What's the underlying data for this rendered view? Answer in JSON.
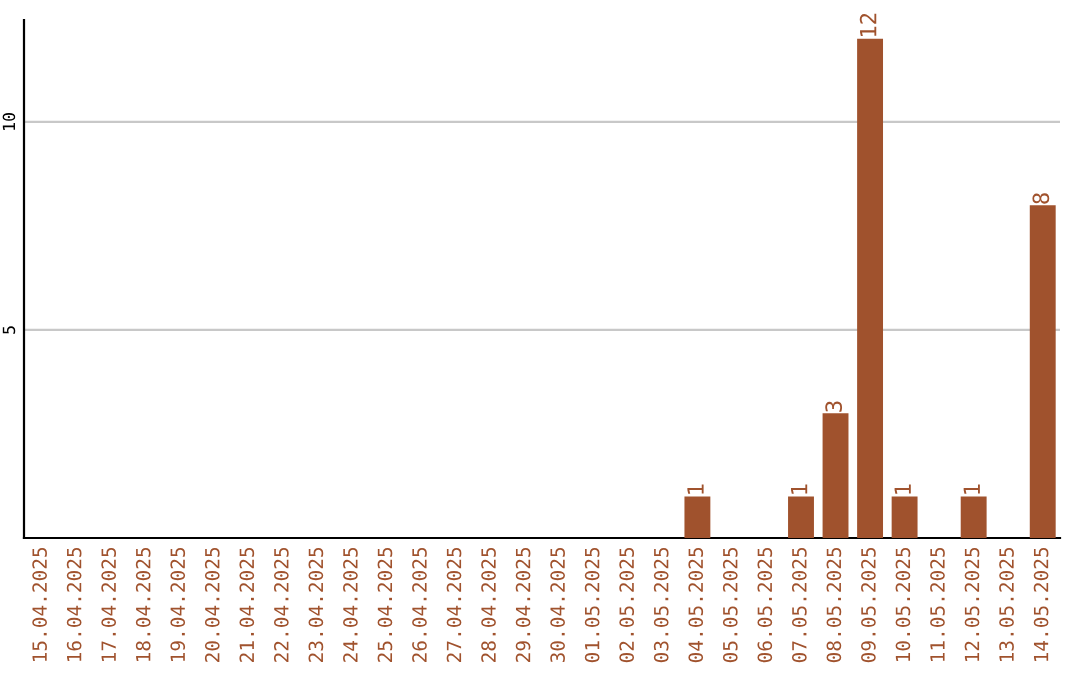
{
  "chart_data": {
    "type": "bar",
    "categories": [
      "15.04.2025",
      "16.04.2025",
      "17.04.2025",
      "18.04.2025",
      "19.04.2025",
      "20.04.2025",
      "21.04.2025",
      "22.04.2025",
      "23.04.2025",
      "24.04.2025",
      "25.04.2025",
      "26.04.2025",
      "27.04.2025",
      "28.04.2025",
      "29.04.2025",
      "30.04.2025",
      "01.05.2025",
      "02.05.2025",
      "03.05.2025",
      "04.05.2025",
      "05.05.2025",
      "06.05.2025",
      "07.05.2025",
      "08.05.2025",
      "09.05.2025",
      "10.05.2025",
      "11.05.2025",
      "12.05.2025",
      "13.05.2025",
      "14.05.2025"
    ],
    "values": [
      0,
      0,
      0,
      0,
      0,
      0,
      0,
      0,
      0,
      0,
      0,
      0,
      0,
      0,
      0,
      0,
      0,
      0,
      0,
      1,
      0,
      0,
      1,
      3,
      12,
      1,
      0,
      1,
      0,
      8
    ],
    "value_labels": [
      null,
      null,
      null,
      null,
      null,
      null,
      null,
      null,
      null,
      null,
      null,
      null,
      null,
      null,
      null,
      null,
      null,
      null,
      null,
      "1",
      null,
      null,
      "1",
      "3",
      "12",
      "1",
      null,
      "1",
      null,
      "8"
    ],
    "color": "#a0522d",
    "ylim": [
      0,
      12.45
    ],
    "yticks": [
      5,
      10
    ],
    "grid": "y"
  }
}
